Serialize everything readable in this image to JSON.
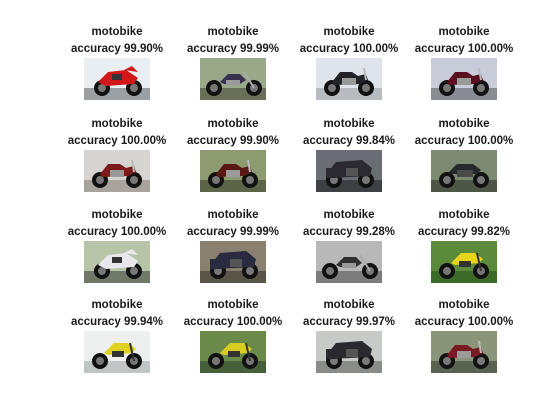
{
  "figure": {
    "cells": [
      {
        "title": "motobike",
        "accuracy": "accuracy 99.90%",
        "bike": "#d01818",
        "bg": "#e8eef2",
        "ground": "#9aa0a4",
        "style": "sport"
      },
      {
        "title": "motobike",
        "accuracy": "accuracy 99.99%",
        "bike": "#3a3050",
        "bg": "#9aa88a",
        "ground": "#6a7058",
        "style": "chopper"
      },
      {
        "title": "motobike",
        "accuracy": "accuracy 100.00%",
        "bike": "#222228",
        "bg": "#dfe4ea",
        "ground": "#b8bcc0",
        "style": "cruiser"
      },
      {
        "title": "motobike",
        "accuracy": "accuracy 100.00%",
        "bike": "#5a1020",
        "bg": "#c8ccd8",
        "ground": "#8a8c94",
        "style": "cruiser"
      },
      {
        "title": "motobike",
        "accuracy": "accuracy 100.00%",
        "bike": "#7a1a1a",
        "bg": "#d6d4d0",
        "ground": "#a8a49c",
        "style": "cruiser"
      },
      {
        "title": "motobike",
        "accuracy": "accuracy 99.90%",
        "bike": "#5a1814",
        "bg": "#8e9a70",
        "ground": "#5e6448",
        "style": "cruiser"
      },
      {
        "title": "motobike",
        "accuracy": "accuracy 99.84%",
        "bike": "#2a2a30",
        "bg": "#6a6e74",
        "ground": "#3e4044",
        "style": "touring"
      },
      {
        "title": "motobike",
        "accuracy": "accuracy 100.00%",
        "bike": "#262a2c",
        "bg": "#7c8a72",
        "ground": "#4e5646",
        "style": "classic"
      },
      {
        "title": "motobike",
        "accuracy": "accuracy 100.00%",
        "bike": "#e8e8ec",
        "bg": "#b8c4a8",
        "ground": "#707868",
        "style": "sport"
      },
      {
        "title": "motobike",
        "accuracy": "accuracy 99.99%",
        "bike": "#2a2a40",
        "bg": "#8a8070",
        "ground": "#5a5448",
        "style": "touring"
      },
      {
        "title": "motobike",
        "accuracy": "accuracy 99.28%",
        "bike": "#303030",
        "bg": "#b8b8b8",
        "ground": "#7c7c7c",
        "style": "chopper"
      },
      {
        "title": "motobike",
        "accuracy": "accuracy 99.82%",
        "bike": "#e8d418",
        "bg": "#5a8a3a",
        "ground": "#3c6a28",
        "style": "dirt"
      },
      {
        "title": "motobike",
        "accuracy": "accuracy 99.94%",
        "bike": "#e0d020",
        "bg": "#eef0f0",
        "ground": "#c0c4c4",
        "style": "dirt"
      },
      {
        "title": "motobike",
        "accuracy": "accuracy 100.00%",
        "bike": "#d8cc20",
        "bg": "#6a8a4a",
        "ground": "#46603a",
        "style": "dirt"
      },
      {
        "title": "motobike",
        "accuracy": "accuracy 99.97%",
        "bike": "#2a2a2e",
        "bg": "#c8cac8",
        "ground": "#8a8c8a",
        "style": "touring"
      },
      {
        "title": "motobike",
        "accuracy": "accuracy 100.00%",
        "bike": "#7a1a22",
        "bg": "#8a9478",
        "ground": "#5a6250",
        "style": "cruiser"
      }
    ]
  }
}
